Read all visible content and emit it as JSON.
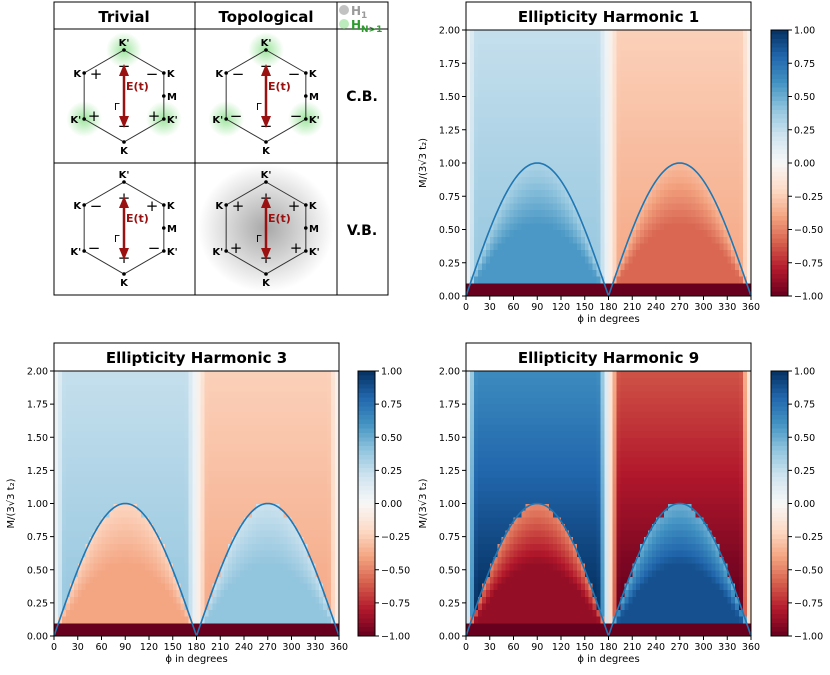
{
  "diagram": {
    "col_headers": [
      "Trivial",
      "Topological"
    ],
    "row_labels": [
      "C.B.",
      "V.B."
    ],
    "legend": [
      {
        "label": "H",
        "sub": "1",
        "color": "#9a9a9a"
      },
      {
        "label": "H",
        "sub": "N>1",
        "color": "#2e9a2e"
      }
    ],
    "field_label": "E(t)",
    "gamma_label": "Γ",
    "vertex_labels": [
      "K'",
      "K",
      "K'",
      "K",
      "K'",
      "K"
    ],
    "m_label": "M",
    "cells": [
      {
        "signs": [
          "+",
          "−",
          "+",
          "−",
          "+",
          "−"
        ],
        "glow": [
          1,
          0,
          1,
          0,
          1,
          0
        ],
        "glow_color": "green",
        "center_glow": false
      },
      {
        "signs": [
          "−",
          "−",
          "−",
          "−",
          "−",
          "−"
        ],
        "glow": [
          1,
          0,
          1,
          0,
          1,
          0
        ],
        "glow_color": "green",
        "center_glow": false
      },
      {
        "signs": [
          "−",
          "+",
          "−",
          "+",
          "−",
          "+"
        ],
        "glow": [
          0,
          0,
          0,
          0,
          0,
          0
        ],
        "glow_color": "none",
        "center_glow": false
      },
      {
        "signs": [
          "+",
          "+",
          "+",
          "+",
          "+",
          "+"
        ],
        "glow": [
          0,
          0,
          0,
          0,
          0,
          0
        ],
        "glow_color": "gray",
        "center_glow": true
      }
    ]
  },
  "chart_data": [
    {
      "type": "heatmap",
      "title": "Ellipticity Harmonic 1",
      "xlabel": "ϕ in degrees",
      "ylabel": "M/(3√3 t₂)",
      "xlim": [
        0,
        360
      ],
      "ylim": [
        0,
        2
      ],
      "xticks": [
        "0",
        "30",
        "60",
        "90",
        "120",
        "150",
        "180",
        "210",
        "240",
        "270",
        "300",
        "330",
        "360"
      ],
      "yticks": [
        "0.00",
        "0.25",
        "0.50",
        "0.75",
        "1.00",
        "1.25",
        "1.50",
        "1.75",
        "2.00"
      ],
      "colorbar_ticks": [
        "1.00",
        "0.75",
        "0.50",
        "0.25",
        "0.00",
        "−0.25",
        "−0.50",
        "−0.75",
        "−1.00"
      ],
      "colorbar_range": [
        -1,
        1
      ],
      "outer_level": 0.32,
      "inner_level": 0.58,
      "bottom_band_max": 0.1,
      "curve": "|sin(phi)|"
    },
    {
      "type": "heatmap",
      "title": "Ellipticity Harmonic 3",
      "xlabel": "ϕ in degrees",
      "ylabel": "M/(3√3 t₂)",
      "xlim": [
        0,
        360
      ],
      "ylim": [
        0,
        2
      ],
      "xticks": [
        "0",
        "30",
        "60",
        "90",
        "120",
        "150",
        "180",
        "210",
        "240",
        "270",
        "300",
        "330",
        "360"
      ],
      "yticks": [
        "0.00",
        "0.25",
        "0.50",
        "0.75",
        "1.00",
        "1.25",
        "1.50",
        "1.75",
        "2.00"
      ],
      "colorbar_ticks": [
        "1.00",
        "0.75",
        "0.50",
        "0.25",
        "0.00",
        "−0.25",
        "−0.50",
        "−0.75",
        "−1.00"
      ],
      "colorbar_range": [
        -1,
        1
      ],
      "outer_level": 0.32,
      "inner_level": -0.4,
      "bottom_band_max": 0.1,
      "curve": "|sin(phi)|"
    },
    {
      "type": "heatmap",
      "title": "Ellipticity Harmonic 9",
      "xlabel": "ϕ in degrees",
      "ylabel": "M/(3√3 t₂)",
      "xlim": [
        0,
        360
      ],
      "ylim": [
        0,
        2
      ],
      "xticks": [
        "0",
        "30",
        "60",
        "90",
        "120",
        "150",
        "180",
        "210",
        "240",
        "270",
        "300",
        "330",
        "360"
      ],
      "yticks": [
        "0.00",
        "0.25",
        "0.50",
        "0.75",
        "1.00",
        "1.25",
        "1.50",
        "1.75",
        "2.00"
      ],
      "colorbar_ticks": [
        "1.00",
        "0.75",
        "0.50",
        "0.25",
        "0.00",
        "−0.25",
        "−0.50",
        "−0.75",
        "−1.00"
      ],
      "colorbar_range": [
        -1,
        1
      ],
      "outer_level": 0.85,
      "inner_level": -0.88,
      "bottom_band_max": 0.1,
      "curve": "|sin(phi)|"
    }
  ]
}
